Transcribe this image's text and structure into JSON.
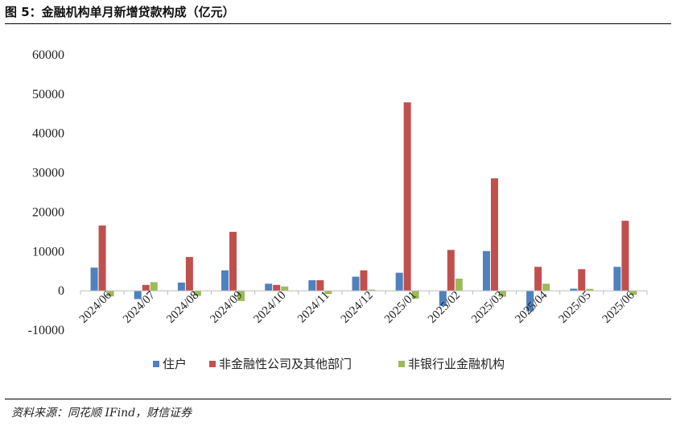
{
  "title": "图 5：金融机构单月新增贷款构成（亿元）",
  "source": "资料来源：同花顺 IFind，财信证券",
  "chart_data": {
    "type": "bar",
    "categories": [
      "2024/06",
      "2024/07",
      "2024/08",
      "2024/09",
      "2024/10",
      "2024/11",
      "2024/12",
      "2025/01",
      "2025/02",
      "2025/03",
      "2025/04",
      "2025/05",
      "2025/06"
    ],
    "series": [
      {
        "name": "住户",
        "color": "#4F81BD",
        "values": [
          5900,
          -2100,
          2100,
          5200,
          1800,
          2700,
          3600,
          4600,
          -3800,
          10100,
          -5200,
          540,
          6100
        ]
      },
      {
        "name": "非金融性公司及其他部门",
        "color": "#C0504D",
        "values": [
          16600,
          1500,
          8600,
          15000,
          1500,
          2700,
          5200,
          47900,
          10400,
          28600,
          6100,
          5500,
          17800
        ]
      },
      {
        "name": "非银行业金融机构",
        "color": "#9BBB59",
        "values": [
          -1400,
          2200,
          -1300,
          -2600,
          1100,
          -800,
          300,
          -2000,
          3100,
          -1500,
          1800,
          500,
          -1000
        ]
      }
    ],
    "ylim": [
      -10000,
      60000
    ],
    "yticks": [
      -10000,
      0,
      10000,
      20000,
      30000,
      40000,
      50000,
      60000
    ],
    "xlabel": "",
    "ylabel": "",
    "grid": false,
    "legend_position": "bottom"
  }
}
